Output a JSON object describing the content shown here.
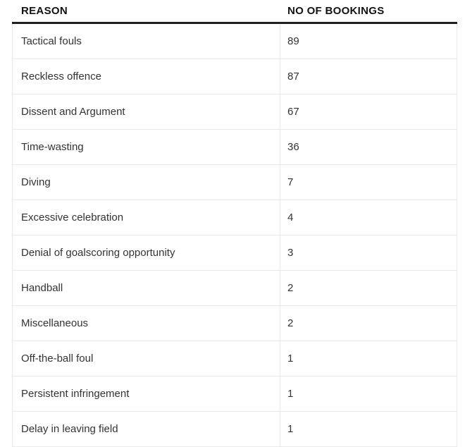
{
  "table": {
    "headers": {
      "reason": "REASON",
      "bookings": "NO OF BOOKINGS"
    },
    "rows": [
      {
        "reason": "Tactical fouls",
        "bookings": "89"
      },
      {
        "reason": "Reckless offence",
        "bookings": "87"
      },
      {
        "reason": "Dissent and Argument",
        "bookings": "67"
      },
      {
        "reason": "Time-wasting",
        "bookings": "36"
      },
      {
        "reason": "Diving",
        "bookings": "7"
      },
      {
        "reason": "Excessive celebration",
        "bookings": "4"
      },
      {
        "reason": "Denial of goalscoring opportunity",
        "bookings": "3"
      },
      {
        "reason": "Handball",
        "bookings": "2"
      },
      {
        "reason": "Miscellaneous",
        "bookings": "2"
      },
      {
        "reason": "Off-the-ball foul",
        "bookings": "1"
      },
      {
        "reason": "Persistent infringement",
        "bookings": "1"
      },
      {
        "reason": "Delay in leaving field",
        "bookings": "1"
      }
    ]
  },
  "colors": {
    "header_text": "#121212",
    "header_rule": "#1f1f1f",
    "divider": "#e9e9e9",
    "body_text": "#333333",
    "background": "#ffffff"
  },
  "chart_data": {
    "type": "table",
    "columns": [
      "REASON",
      "NO OF BOOKINGS"
    ],
    "categories": [
      "Tactical fouls",
      "Reckless offence",
      "Dissent and Argument",
      "Time-wasting",
      "Diving",
      "Excessive celebration",
      "Denial of goalscoring opportunity",
      "Handball",
      "Miscellaneous",
      "Off-the-ball foul",
      "Persistent infringement",
      "Delay in leaving field"
    ],
    "values": [
      89,
      87,
      67,
      36,
      7,
      4,
      3,
      2,
      2,
      1,
      1,
      1
    ],
    "title": "",
    "xlabel": "REASON",
    "ylabel": "NO OF BOOKINGS",
    "legend": false,
    "grid": "row-dividers"
  }
}
